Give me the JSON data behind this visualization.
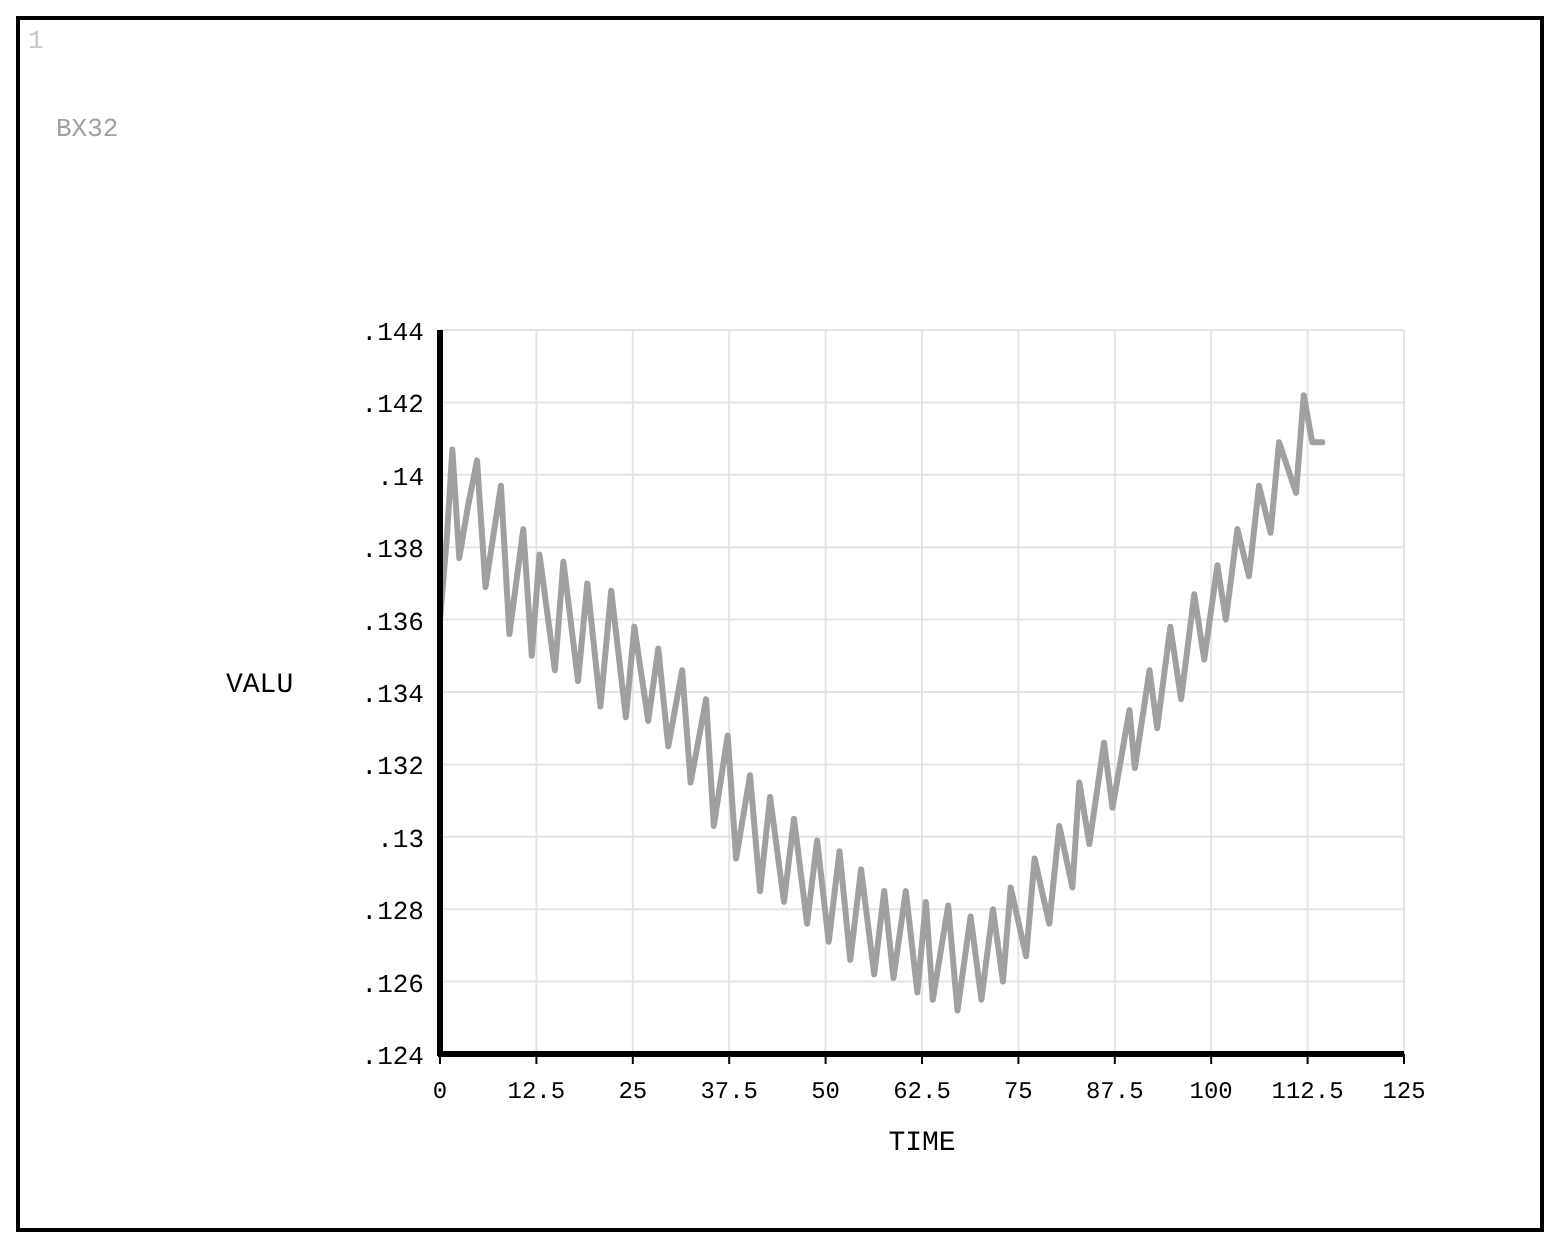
{
  "chart_data": {
    "type": "line",
    "xlabel": "TIME",
    "ylabel": "VALU",
    "annotations": [
      "1"
    ],
    "x": [
      0,
      0.9,
      1.6,
      2.5,
      3.6,
      4.8,
      5.9,
      7.9,
      9.0,
      10.8,
      11.9,
      12.9,
      14.9,
      16.0,
      17.9,
      19.1,
      20.8,
      22.2,
      24.1,
      25.2,
      27.0,
      28.3,
      29.6,
      31.4,
      32.5,
      34.5,
      35.5,
      37.3,
      38.4,
      40.2,
      41.5,
      42.8,
      44.6,
      45.9,
      47.6,
      48.9,
      50.4,
      51.8,
      53.2,
      54.6,
      56.3,
      57.6,
      58.8,
      60.4,
      61.9,
      63.0,
      63.9,
      65.9,
      67.1,
      68.8,
      70.2,
      71.7,
      73.0,
      74.0,
      76.0,
      77.1,
      79.0,
      80.3,
      82.0,
      82.9,
      84.2,
      86.1,
      87.2,
      89.4,
      90.1,
      92.0,
      93.0,
      94.7,
      96.1,
      97.8,
      99.1,
      100.8,
      101.9,
      103.4,
      104.9,
      106.2,
      107.7,
      108.8,
      111.0,
      112.0,
      113.1,
      114.4
    ],
    "series": [
      {
        "name": "BX32",
        "color": "#a0a0a0",
        "values": [
          0.136,
          0.1383,
          0.1407,
          0.1377,
          0.1391,
          0.1404,
          0.1369,
          0.1397,
          0.1356,
          0.1385,
          0.135,
          0.1378,
          0.1346,
          0.1376,
          0.1343,
          0.137,
          0.1336,
          0.1368,
          0.1333,
          0.1358,
          0.1332,
          0.1352,
          0.1325,
          0.1346,
          0.1315,
          0.1338,
          0.1303,
          0.1328,
          0.1294,
          0.1317,
          0.1285,
          0.1311,
          0.1282,
          0.1305,
          0.1276,
          0.1299,
          0.1271,
          0.1296,
          0.1266,
          0.1291,
          0.1262,
          0.1285,
          0.1261,
          0.1285,
          0.1257,
          0.1282,
          0.1255,
          0.1281,
          0.1252,
          0.1278,
          0.1255,
          0.128,
          0.126,
          0.1286,
          0.1267,
          0.1294,
          0.1276,
          0.1303,
          0.1286,
          0.1315,
          0.1298,
          0.1326,
          0.1308,
          0.1335,
          0.1319,
          0.1346,
          0.133,
          0.1358,
          0.1338,
          0.1367,
          0.1349,
          0.1375,
          0.136,
          0.1385,
          0.1372,
          0.1397,
          0.1384,
          0.1409,
          0.1395,
          0.1422,
          0.1409,
          0.1409
        ]
      }
    ],
    "xlim": [
      0,
      125
    ],
    "xticks": [
      0,
      12.5,
      25,
      37.5,
      50,
      62.5,
      75,
      87.5,
      100,
      112.5,
      125
    ],
    "ylim": [
      0.124,
      0.144
    ],
    "yticks": [
      {
        "value": 0.124,
        "label": ".124"
      },
      {
        "value": 0.126,
        "label": ".126"
      },
      {
        "value": 0.128,
        "label": ".128"
      },
      {
        "value": 0.13,
        "label": ".13"
      },
      {
        "value": 0.132,
        "label": ".132"
      },
      {
        "value": 0.134,
        "label": ".134"
      },
      {
        "value": 0.136,
        "label": ".136"
      },
      {
        "value": 0.138,
        "label": ".138"
      },
      {
        "value": 0.14,
        "label": ".14"
      },
      {
        "value": 0.142,
        "label": ".142"
      },
      {
        "value": 0.144,
        "label": ".144"
      }
    ],
    "grid": true,
    "legend": "top left",
    "line_style": "solid",
    "marker": "none"
  }
}
